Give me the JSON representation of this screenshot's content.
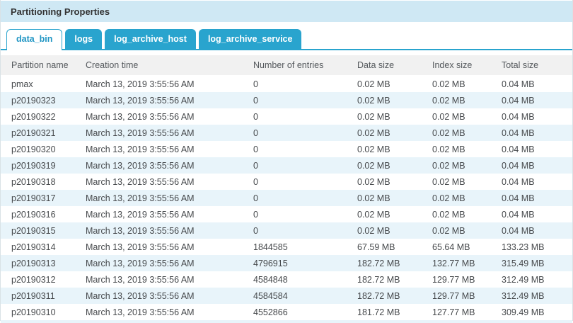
{
  "panel": {
    "title": "Partitioning Properties"
  },
  "tabs": [
    {
      "label": "data_bin",
      "active": true
    },
    {
      "label": "logs",
      "active": false
    },
    {
      "label": "log_archive_host",
      "active": false
    },
    {
      "label": "log_archive_service",
      "active": false
    }
  ],
  "table": {
    "columns": [
      "Partition name",
      "Creation time",
      "Number of entries",
      "Data size",
      "Index size",
      "Total size"
    ],
    "rows": [
      [
        "pmax",
        "March 13, 2019 3:55:56 AM",
        "0",
        "0.02 MB",
        "0.02 MB",
        "0.04 MB"
      ],
      [
        "p20190323",
        "March 13, 2019 3:55:56 AM",
        "0",
        "0.02 MB",
        "0.02 MB",
        "0.04 MB"
      ],
      [
        "p20190322",
        "March 13, 2019 3:55:56 AM",
        "0",
        "0.02 MB",
        "0.02 MB",
        "0.04 MB"
      ],
      [
        "p20190321",
        "March 13, 2019 3:55:56 AM",
        "0",
        "0.02 MB",
        "0.02 MB",
        "0.04 MB"
      ],
      [
        "p20190320",
        "March 13, 2019 3:55:56 AM",
        "0",
        "0.02 MB",
        "0.02 MB",
        "0.04 MB"
      ],
      [
        "p20190319",
        "March 13, 2019 3:55:56 AM",
        "0",
        "0.02 MB",
        "0.02 MB",
        "0.04 MB"
      ],
      [
        "p20190318",
        "March 13, 2019 3:55:56 AM",
        "0",
        "0.02 MB",
        "0.02 MB",
        "0.04 MB"
      ],
      [
        "p20190317",
        "March 13, 2019 3:55:56 AM",
        "0",
        "0.02 MB",
        "0.02 MB",
        "0.04 MB"
      ],
      [
        "p20190316",
        "March 13, 2019 3:55:56 AM",
        "0",
        "0.02 MB",
        "0.02 MB",
        "0.04 MB"
      ],
      [
        "p20190315",
        "March 13, 2019 3:55:56 AM",
        "0",
        "0.02 MB",
        "0.02 MB",
        "0.04 MB"
      ],
      [
        "p20190314",
        "March 13, 2019 3:55:56 AM",
        "1844585",
        "67.59 MB",
        "65.64 MB",
        "133.23 MB"
      ],
      [
        "p20190313",
        "March 13, 2019 3:55:56 AM",
        "4796915",
        "182.72 MB",
        "132.77 MB",
        "315.49 MB"
      ],
      [
        "p20190312",
        "March 13, 2019 3:55:56 AM",
        "4584848",
        "182.72 MB",
        "129.77 MB",
        "312.49 MB"
      ],
      [
        "p20190311",
        "March 13, 2019 3:55:56 AM",
        "4584584",
        "182.72 MB",
        "129.77 MB",
        "312.49 MB"
      ],
      [
        "p20190310",
        "March 13, 2019 3:55:56 AM",
        "4552866",
        "181.72 MB",
        "127.77 MB",
        "309.49 MB"
      ]
    ]
  },
  "colors": {
    "accent_blue": "#29a4ce",
    "active_tab_text": "#2196c4",
    "title_band_bg": "#cfe8f4",
    "row_stripe": "#e8f4fa",
    "table_header_bg": "#f1f1f1"
  }
}
